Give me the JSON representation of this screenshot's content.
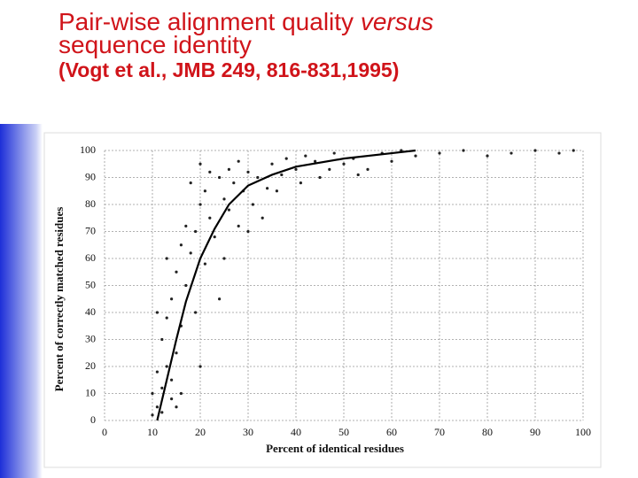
{
  "chart_data": {
    "type": "scatter",
    "title": [
      "Pair-wise alignment quality",
      "versus",
      "sequence identity"
    ],
    "subtitle": "(Vogt et al., JMB 249, 816-831,1995)",
    "x_label": "Percent of identical residues",
    "y_label": "Percent of correctly matched residues",
    "xlim": [
      0,
      100
    ],
    "ylim": [
      0,
      100
    ],
    "xticks": [
      0,
      10,
      20,
      30,
      40,
      50,
      60,
      70,
      80,
      90,
      100
    ],
    "yticks": [
      0,
      10,
      20,
      30,
      40,
      50,
      60,
      70,
      80,
      90,
      100
    ],
    "grid": true,
    "series": [
      {
        "type": "scatter",
        "color": "#222",
        "x": [
          10,
          11,
          12,
          13,
          14,
          12,
          13,
          15,
          11,
          14,
          16,
          17,
          15,
          18,
          19,
          20,
          17,
          16,
          21,
          22,
          23,
          24,
          25,
          26,
          27,
          28,
          29,
          30,
          31,
          32,
          34,
          35,
          37,
          38,
          40,
          42,
          44,
          45,
          48,
          50,
          52,
          55,
          58,
          60,
          62,
          65,
          70,
          75,
          80,
          85,
          90,
          95,
          98,
          12,
          14,
          19,
          21,
          18,
          20,
          25,
          30,
          13,
          16,
          20,
          22,
          33,
          36,
          41,
          47,
          53,
          11,
          15,
          10,
          24,
          26,
          28
        ],
        "values": [
          2,
          5,
          12,
          20,
          8,
          30,
          38,
          25,
          18,
          45,
          35,
          50,
          55,
          62,
          70,
          80,
          72,
          65,
          85,
          75,
          68,
          90,
          82,
          78,
          88,
          72,
          85,
          92,
          80,
          90,
          86,
          95,
          91,
          97,
          93,
          98,
          96,
          90,
          99,
          95,
          97,
          93,
          99,
          96,
          100,
          98,
          99,
          100,
          98,
          99,
          100,
          99,
          100,
          3,
          15,
          40,
          58,
          88,
          95,
          60,
          70,
          60,
          10,
          20,
          92,
          75,
          85,
          88,
          93,
          91,
          40,
          5,
          10,
          45,
          93,
          96
        ]
      },
      {
        "type": "line",
        "color": "#000",
        "x": [
          11,
          13,
          15,
          17,
          20,
          23,
          26,
          30,
          35,
          40,
          50,
          60,
          65
        ],
        "values": [
          0,
          15,
          30,
          44,
          60,
          71,
          80,
          87,
          91,
          94,
          97,
          99,
          100
        ]
      }
    ]
  }
}
